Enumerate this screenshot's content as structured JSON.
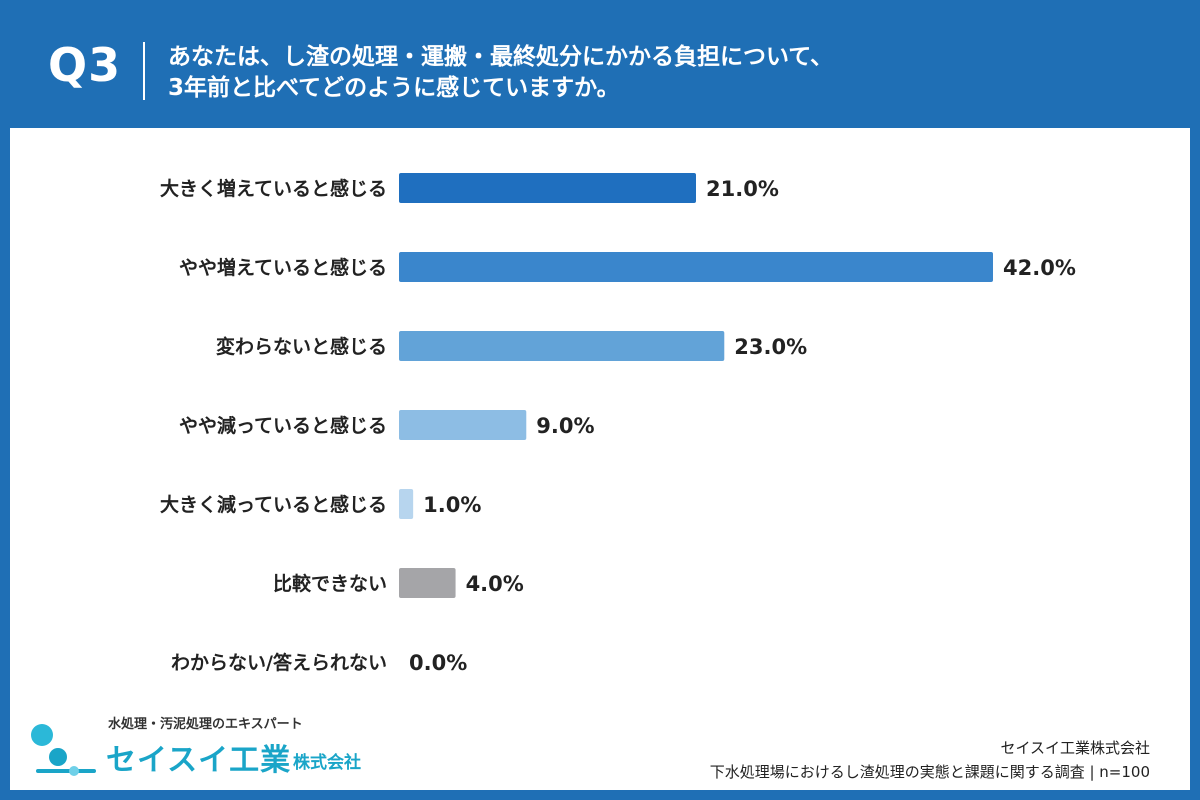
{
  "header": {
    "q_label": "Q3",
    "question_line1": "あなたは、し渣の処理・運搬・最終処分にかかる負担について、",
    "question_line2": "3年前と比べてどのように感じていますか。"
  },
  "chart_data": {
    "type": "bar",
    "orientation": "horizontal",
    "categories": [
      "大きく増えていると感じる",
      "やや増えていると感じる",
      "変わらないと感じる",
      "やや減っていると感じる",
      "大きく減っていると感じる",
      "比較できない",
      "わからない/答えられない"
    ],
    "values": [
      21.0,
      42.0,
      23.0,
      9.0,
      1.0,
      4.0,
      0.0
    ],
    "value_labels": [
      "21.0%",
      "42.0%",
      "23.0%",
      "9.0%",
      "1.0%",
      "4.0%",
      "0.0%"
    ],
    "colors": [
      "#1f6fbf",
      "#3a86cc",
      "#62a3d8",
      "#8dbde4",
      "#b7d5ee",
      "#a5a5a8",
      "#a5a5a8"
    ],
    "xlim": [
      0,
      42
    ],
    "grid": false
  },
  "logo": {
    "tagline": "水処理・汚泥処理のエキスパート",
    "name": "セイスイ工業",
    "suffix": "株式会社"
  },
  "footer": {
    "company": "セイスイ工業株式会社",
    "survey": "下水処理場におけるし渣処理の実態と課題に関する調査 | n=100"
  }
}
